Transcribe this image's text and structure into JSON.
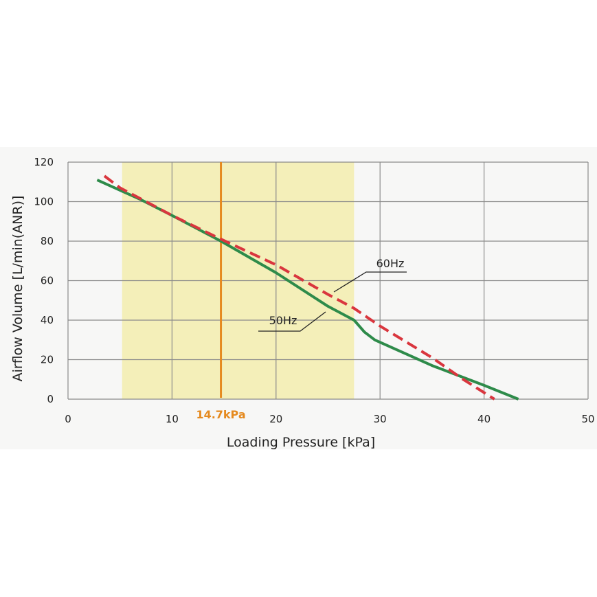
{
  "chart_data": {
    "type": "line",
    "title": "",
    "xlabel": "Loading Pressure [kPa]",
    "ylabel": "Airflow Volume [L/min(ANR)]",
    "xlim": [
      0,
      50
    ],
    "ylim": [
      0,
      120
    ],
    "xticks": [
      "0",
      "10",
      "20",
      "30",
      "40",
      "50"
    ],
    "yticks": [
      "0",
      "20",
      "40",
      "60",
      "80",
      "100",
      "120"
    ],
    "grid": true,
    "highlight_band": {
      "x_range": [
        5.2,
        27.5
      ],
      "color": "#f4efb9"
    },
    "marker": {
      "x": 14.7,
      "label": "14.7kPa",
      "color": "#e58a1f"
    },
    "series": [
      {
        "name": "50Hz",
        "color": "#2e8b4a",
        "style": "solid",
        "points": [
          [
            2.8,
            111
          ],
          [
            7,
            101
          ],
          [
            10,
            93
          ],
          [
            14.7,
            80
          ],
          [
            20,
            64
          ],
          [
            25,
            47
          ],
          [
            27.5,
            40
          ],
          [
            28.5,
            34
          ],
          [
            29.5,
            30
          ],
          [
            35,
            17
          ],
          [
            40,
            7
          ],
          [
            43.3,
            0
          ]
        ]
      },
      {
        "name": "60Hz",
        "color": "#d9363e",
        "style": "dashed",
        "points": [
          [
            3.5,
            113
          ],
          [
            5,
            107
          ],
          [
            10,
            93
          ],
          [
            14.7,
            81
          ],
          [
            20,
            68
          ],
          [
            25,
            53
          ],
          [
            27.5,
            46
          ],
          [
            30,
            37
          ],
          [
            35,
            21
          ],
          [
            38,
            10
          ],
          [
            41,
            0
          ]
        ]
      }
    ],
    "annotations": [
      {
        "text": "60Hz",
        "series": "60Hz"
      },
      {
        "text": "50Hz",
        "series": "50Hz"
      }
    ]
  }
}
